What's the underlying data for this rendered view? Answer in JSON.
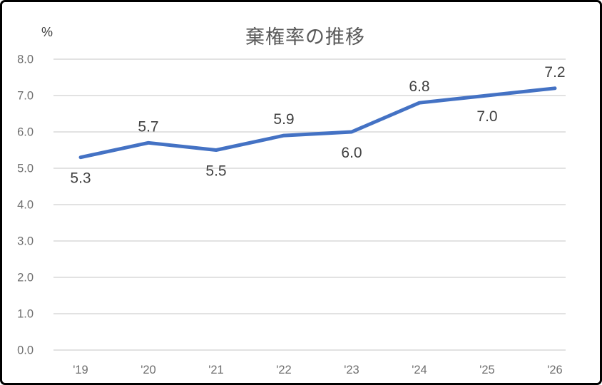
{
  "chart_data": {
    "type": "line",
    "title": "棄権率の推移",
    "unit_label": "%",
    "categories": [
      "'19",
      "'20",
      "'21",
      "'22",
      "'23",
      "'24",
      "'25",
      "'26"
    ],
    "values": [
      5.3,
      5.7,
      5.5,
      5.9,
      6.0,
      6.8,
      7.0,
      7.2
    ],
    "data_labels": [
      "5.3",
      "5.7",
      "5.5",
      "5.9",
      "6.0",
      "6.8",
      "7.0",
      "7.2"
    ],
    "data_label_positions": [
      "below",
      "above",
      "below",
      "above",
      "below",
      "above",
      "below",
      "above"
    ],
    "series_name": "",
    "xlabel": "",
    "ylabel": "%",
    "ylim": [
      0,
      8
    ],
    "ytick_step": 1,
    "ytick_labels": [
      "0.0",
      "1.0",
      "2.0",
      "3.0",
      "4.0",
      "5.0",
      "6.0",
      "7.0",
      "8.0"
    ],
    "grid": "horizontal",
    "legend": "none",
    "colors": {
      "line": "#4472C4",
      "gridline": "#D9D9D9",
      "title": "#595959",
      "tick_label": "#6F6F6F",
      "data_label": "#404040",
      "unit_label": "#404040",
      "frame_border": "#000000",
      "background": "#FFFFFF"
    }
  }
}
